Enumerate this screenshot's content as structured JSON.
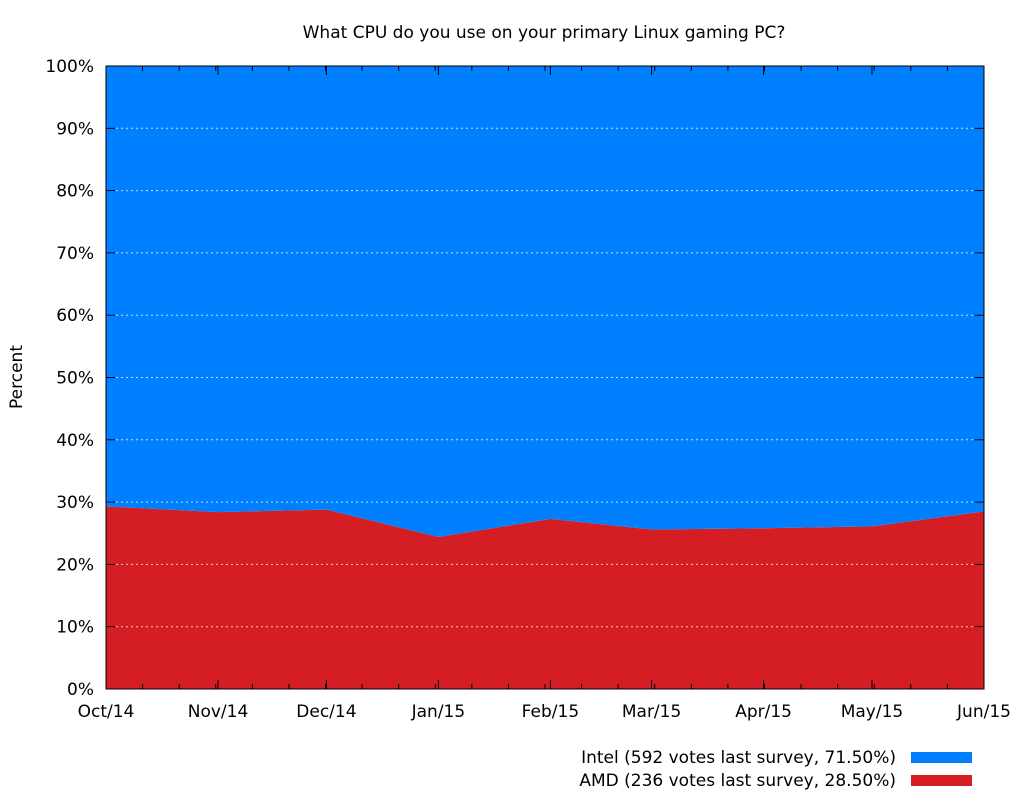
{
  "chart_data": {
    "type": "area",
    "stacked": true,
    "title": "What CPU do you use on your primary Linux gaming PC?",
    "xlabel": "",
    "ylabel": "Percent",
    "categories": [
      "Oct/14",
      "Nov/14",
      "Dec/14",
      "Jan/15",
      "Feb/15",
      "Mar/15",
      "Apr/15",
      "May/15",
      "Jun/15"
    ],
    "x_dates": [
      "2014-10-01",
      "2014-11-01",
      "2014-12-01",
      "2015-01-01",
      "2015-02-01",
      "2015-03-01",
      "2015-04-01",
      "2015-05-01",
      "2015-06-01"
    ],
    "y_ticks": [
      "0%",
      "10%",
      "20%",
      "30%",
      "40%",
      "50%",
      "60%",
      "70%",
      "80%",
      "90%",
      "100%"
    ],
    "ylim": [
      0,
      100
    ],
    "grid": true,
    "legend_position": "bottom-right",
    "series": [
      {
        "name": "AMD (236 votes last survey, 28.50%)",
        "color": "#d41e23",
        "values": [
          29.3,
          28.4,
          28.8,
          24.4,
          27.3,
          25.6,
          25.8,
          26.1,
          28.5
        ]
      },
      {
        "name": "Intel (592 votes last survey, 71.50%)",
        "color": "#0080ff",
        "values": [
          70.7,
          71.6,
          71.2,
          75.6,
          72.7,
          74.4,
          74.2,
          73.9,
          71.5
        ]
      }
    ]
  }
}
